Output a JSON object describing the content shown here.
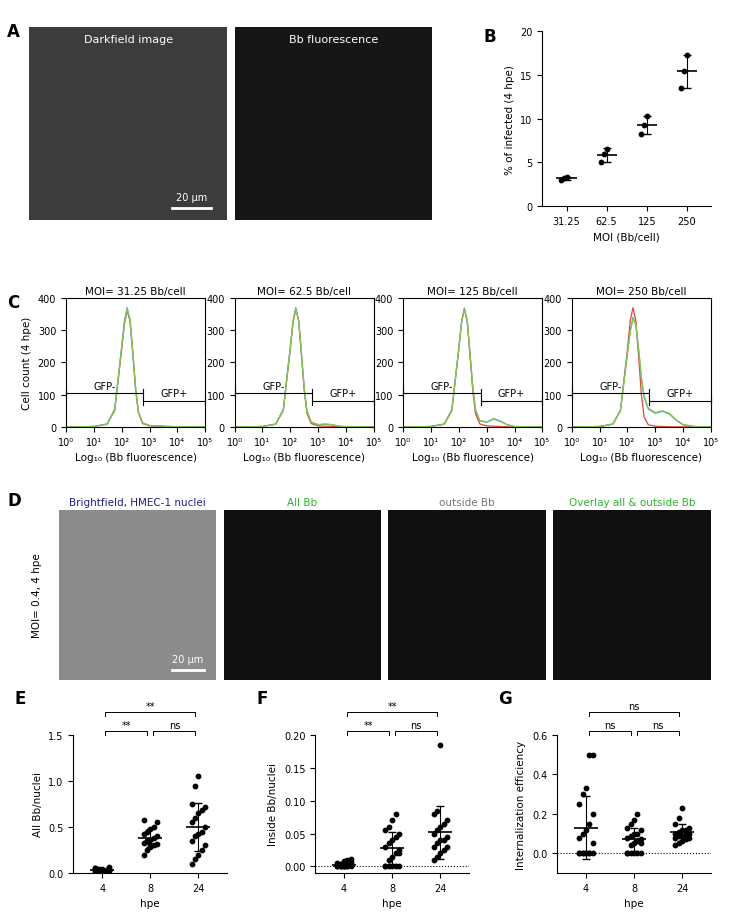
{
  "images": [
    {
      "panel_label": "A",
      "frames": [
        {
          "title": "Darkfield image",
          "color": "#ffffff",
          "scale_bar": "20 µm"
        },
        {
          "title": "Bb fluorescence",
          "color": "#ffffff"
        }
      ]
    },
    {
      "panel_label": "D",
      "row_label": "MOI= 0.4, 4 hpe",
      "frames": [
        {
          "title": "Brightfield, HMEC-1 nuclei",
          "color": "#1f1f8f",
          "scale_bar": "20 µm"
        },
        {
          "title": "All Bb",
          "color": "#2bb52b"
        },
        {
          "title": "outside Bb",
          "color": "#777777"
        },
        {
          "title": "Overlay all & outside Bb",
          "color": "#2bb52b"
        }
      ]
    }
  ],
  "chart_data": [
    {
      "panel_label": "B",
      "type": "scatter",
      "categories": [
        "31.25",
        "62.5",
        "125",
        "250"
      ],
      "values": [
        [
          3.0,
          3.2,
          3.3
        ],
        [
          5.0,
          6.0,
          6.5
        ],
        [
          8.2,
          9.3,
          10.3
        ],
        [
          13.5,
          15.5,
          17.3
        ]
      ],
      "mean": [
        3.17,
        5.83,
        9.27,
        15.43
      ],
      "sd": [
        0.15,
        0.76,
        1.05,
        1.9
      ],
      "x_label": "MOI (Bb/cell)",
      "y_label": "% of infected (4 hpe)",
      "ylim": [
        0,
        20
      ],
      "yticks": [
        0,
        5,
        10,
        15,
        20
      ],
      "color": "#000000"
    },
    {
      "panel_label": "C",
      "type": "line",
      "title": "MOI= 31.25 Bb/cell",
      "log": "x",
      "x_label": "Log₁₀ (Bb fluorescence)",
      "y_label": "Cell count (4 hpe)",
      "x": [
        1,
        3,
        10,
        30,
        56,
        100,
        126,
        158,
        200,
        251,
        316,
        398,
        562,
        1000,
        1778,
        3162,
        5623,
        10000,
        31623,
        100000
      ],
      "series": [
        {
          "color": "#e8453c",
          "values": [
            0,
            0,
            1,
            8,
            50,
            240,
            320,
            360,
            330,
            230,
            120,
            45,
            10,
            3,
            2,
            1,
            0,
            0,
            0,
            0
          ]
        },
        {
          "color": "#3fa7d6",
          "values": [
            0,
            0,
            1,
            9,
            55,
            250,
            330,
            370,
            325,
            225,
            115,
            45,
            12,
            4,
            3,
            2,
            1,
            0,
            0,
            0
          ]
        },
        {
          "color": "#8cc63f",
          "values": [
            0,
            0,
            1,
            8,
            52,
            245,
            325,
            365,
            335,
            235,
            120,
            48,
            12,
            4,
            3,
            2,
            1,
            0,
            0,
            0
          ]
        }
      ],
      "gates": [
        {
          "label": "GFP-",
          "start": 1,
          "end": 600
        },
        {
          "label": "GFP+",
          "start": 600,
          "end": 100000
        }
      ],
      "xlim": [
        1,
        100000
      ],
      "xticks": [
        {
          "value": 1,
          "label": "10⁰"
        },
        {
          "value": 10,
          "label": "10¹"
        },
        {
          "value": 100,
          "label": "10²"
        },
        {
          "value": 1000,
          "label": "10³"
        },
        {
          "value": 10000,
          "label": "10⁴"
        },
        {
          "value": 100000,
          "label": "10⁵"
        }
      ],
      "ylim": [
        0,
        400
      ],
      "yticks": [
        0,
        100,
        200,
        300,
        400
      ]
    },
    {
      "type": "line",
      "title": "MOI= 62.5 Bb/cell",
      "log": "x",
      "x_label": "Log₁₀ (Bb fluorescence)",
      "x": [
        1,
        3,
        10,
        30,
        56,
        100,
        126,
        158,
        200,
        251,
        316,
        398,
        562,
        1000,
        1778,
        3162,
        5623,
        10000,
        31623,
        100000
      ],
      "series": [
        {
          "color": "#e8453c",
          "values": [
            0,
            0,
            1,
            8,
            50,
            240,
            325,
            365,
            330,
            225,
            115,
            42,
            10,
            3,
            2,
            1,
            0,
            0,
            0,
            0
          ]
        },
        {
          "color": "#3fa7d6",
          "values": [
            0,
            0,
            1,
            9,
            54,
            248,
            330,
            370,
            328,
            228,
            120,
            48,
            14,
            6,
            8,
            6,
            2,
            0,
            0,
            0
          ]
        },
        {
          "color": "#8cc63f",
          "values": [
            0,
            0,
            1,
            8,
            52,
            244,
            326,
            366,
            332,
            232,
            122,
            50,
            15,
            7,
            9,
            7,
            2,
            1,
            0,
            0
          ]
        }
      ],
      "gates": [
        {
          "label": "GFP-",
          "start": 1,
          "end": 600
        },
        {
          "label": "GFP+",
          "start": 600,
          "end": 100000
        }
      ],
      "xlim": [
        1,
        100000
      ],
      "xticks": [
        {
          "value": 1,
          "label": "10⁰"
        },
        {
          "value": 10,
          "label": "10¹"
        },
        {
          "value": 100,
          "label": "10²"
        },
        {
          "value": 1000,
          "label": "10³"
        },
        {
          "value": 10000,
          "label": "10⁴"
        },
        {
          "value": 100000,
          "label": "10⁵"
        }
      ],
      "ylim": [
        0,
        400
      ],
      "yticks": [
        0,
        100,
        200,
        300,
        400
      ]
    },
    {
      "type": "line",
      "title": "MOI= 125 Bb/cell",
      "log": "x",
      "x_label": "Log₁₀ (Bb fluorescence)",
      "x": [
        1,
        3,
        10,
        30,
        56,
        100,
        126,
        158,
        200,
        251,
        316,
        398,
        562,
        1000,
        1778,
        3162,
        5623,
        10000,
        31623,
        100000
      ],
      "series": [
        {
          "color": "#e8453c",
          "values": [
            0,
            0,
            1,
            8,
            50,
            242,
            328,
            368,
            330,
            222,
            112,
            40,
            9,
            3,
            2,
            1,
            0,
            0,
            0,
            0
          ]
        },
        {
          "color": "#3fa7d6",
          "values": [
            0,
            0,
            1,
            9,
            54,
            246,
            328,
            366,
            326,
            226,
            122,
            52,
            18,
            14,
            24,
            16,
            6,
            1,
            0,
            0
          ]
        },
        {
          "color": "#8cc63f",
          "values": [
            0,
            0,
            1,
            8,
            52,
            244,
            326,
            364,
            330,
            230,
            124,
            54,
            20,
            15,
            26,
            18,
            6,
            1,
            0,
            0
          ]
        }
      ],
      "gates": [
        {
          "label": "GFP-",
          "start": 1,
          "end": 600
        },
        {
          "label": "GFP+",
          "start": 600,
          "end": 100000
        }
      ],
      "xlim": [
        1,
        100000
      ],
      "xticks": [
        {
          "value": 1,
          "label": "10⁰"
        },
        {
          "value": 10,
          "label": "10¹"
        },
        {
          "value": 100,
          "label": "10²"
        },
        {
          "value": 1000,
          "label": "10³"
        },
        {
          "value": 10000,
          "label": "10⁴"
        },
        {
          "value": 100000,
          "label": "10⁵"
        }
      ],
      "ylim": [
        0,
        400
      ],
      "yticks": [
        0,
        100,
        200,
        300,
        400
      ]
    },
    {
      "type": "line",
      "title": "MOI= 250 Bb/cell",
      "log": "x",
      "x_label": "Log₁₀ (Bb fluorescence)",
      "x": [
        1,
        3,
        10,
        30,
        56,
        100,
        126,
        158,
        200,
        251,
        316,
        398,
        562,
        1000,
        1778,
        3162,
        5623,
        10000,
        31623,
        100000
      ],
      "series": [
        {
          "color": "#e8453c",
          "values": [
            0,
            0,
            1,
            8,
            50,
            240,
            330,
            370,
            330,
            220,
            100,
            30,
            6,
            2,
            1,
            0,
            0,
            0,
            0,
            0
          ]
        },
        {
          "color": "#3fa7d6",
          "values": [
            0,
            0,
            1,
            9,
            52,
            230,
            300,
            340,
            315,
            240,
            150,
            90,
            55,
            42,
            48,
            40,
            20,
            6,
            0,
            0
          ]
        },
        {
          "color": "#8cc63f",
          "values": [
            0,
            0,
            1,
            8,
            50,
            225,
            295,
            335,
            318,
            245,
            155,
            95,
            58,
            44,
            50,
            42,
            22,
            7,
            0,
            0
          ]
        }
      ],
      "gates": [
        {
          "label": "GFP-",
          "start": 1,
          "end": 600
        },
        {
          "label": "GFP+",
          "start": 600,
          "end": 100000
        }
      ],
      "xlim": [
        1,
        100000
      ],
      "xticks": [
        {
          "value": 1,
          "label": "10⁰"
        },
        {
          "value": 10,
          "label": "10¹"
        },
        {
          "value": 100,
          "label": "10²"
        },
        {
          "value": 1000,
          "label": "10³"
        },
        {
          "value": 10000,
          "label": "10⁴"
        },
        {
          "value": 100000,
          "label": "10⁵"
        }
      ],
      "ylim": [
        0,
        400
      ],
      "yticks": [
        0,
        100,
        200,
        300,
        400
      ]
    },
    {
      "panel_label": "E",
      "type": "scatter",
      "categories": [
        "4",
        "8",
        "24"
      ],
      "values": [
        [
          0.01,
          0.02,
          0.03,
          0.02,
          0.04,
          0.05,
          0.03,
          0.01,
          0.02,
          0.06,
          0.03,
          0.04,
          0.02,
          0.01,
          0.03,
          0.05,
          0.02,
          0.04,
          0.03,
          0.02
        ],
        [
          0.2,
          0.25,
          0.28,
          0.3,
          0.32,
          0.33,
          0.35,
          0.36,
          0.38,
          0.4,
          0.42,
          0.45,
          0.48,
          0.5,
          0.55,
          0.58,
          0.35,
          0.3
        ],
        [
          0.1,
          0.15,
          0.2,
          0.25,
          0.3,
          0.35,
          0.4,
          0.42,
          0.45,
          0.5,
          0.55,
          0.6,
          0.65,
          0.68,
          0.72,
          0.75,
          0.95,
          1.05
        ]
      ],
      "mean": [
        0.029,
        0.378,
        0.504
      ],
      "sd": [
        0.014,
        0.1,
        0.26
      ],
      "comparisons": [
        {
          "pair": [
            "4",
            "8"
          ],
          "label": "**"
        },
        {
          "pair": [
            "4",
            "24"
          ],
          "label": "**"
        },
        {
          "pair": [
            "8",
            "24"
          ],
          "label": "ns"
        }
      ],
      "x_label": "hpe",
      "y_label": "All Bb/nuclei",
      "ylim": [
        0,
        1.5
      ],
      "yticks": [
        {
          "value": 0,
          "label": "0.0"
        },
        {
          "value": 0.5,
          "label": "0.5"
        },
        {
          "value": 1,
          "label": "1.0"
        },
        {
          "value": 1.5,
          "label": "1.5"
        }
      ],
      "color": "#000000"
    },
    {
      "panel_label": "F",
      "type": "scatter",
      "categories": [
        "4",
        "8",
        "24"
      ],
      "values": [
        [
          0,
          0,
          0,
          0,
          0,
          0,
          0,
          0,
          0,
          0.003,
          0.005,
          0.004,
          0.008,
          0.01,
          0.006,
          0.002,
          0,
          0,
          0.003,
          0.012
        ],
        [
          0,
          0,
          0,
          0,
          0,
          0,
          0.01,
          0.015,
          0.02,
          0.025,
          0.03,
          0.035,
          0.04,
          0.045,
          0.05,
          0.055,
          0.06,
          0.07,
          0.08,
          0.02
        ],
        [
          0.01,
          0.015,
          0.02,
          0.025,
          0.03,
          0.03,
          0.035,
          0.04,
          0.04,
          0.045,
          0.05,
          0.055,
          0.06,
          0.065,
          0.07,
          0.08,
          0.085,
          0.185
        ]
      ],
      "mean": [
        0.0027,
        0.028,
        0.052
      ],
      "sd": [
        0.004,
        0.025,
        0.04
      ],
      "comparisons": [
        {
          "pair": [
            "4",
            "8"
          ],
          "label": "**"
        },
        {
          "pair": [
            "4",
            "24"
          ],
          "label": "**"
        },
        {
          "pair": [
            "8",
            "24"
          ],
          "label": "ns"
        }
      ],
      "x_label": "hpe",
      "y_label": "Inside Bb/nuclei",
      "ylim": [
        -0.01,
        0.2
      ],
      "yticks": [
        {
          "value": 0,
          "label": "0.00"
        },
        {
          "value": 0.05,
          "label": "0.05"
        },
        {
          "value": 0.1,
          "label": "0.10"
        },
        {
          "value": 0.15,
          "label": "0.15"
        },
        {
          "value": 0.2,
          "label": "0.20"
        }
      ],
      "color": "#000000"
    },
    {
      "panel_label": "G",
      "type": "scatter",
      "categories": [
        "4",
        "8",
        "24"
      ],
      "values": [
        [
          0,
          0,
          0,
          0,
          0,
          0,
          0,
          0,
          0,
          0.05,
          0.08,
          0.1,
          0.12,
          0.15,
          0.2,
          0.25,
          0.3,
          0.33,
          0.5,
          0.5
        ],
        [
          0,
          0,
          0,
          0,
          0,
          0,
          0.04,
          0.05,
          0.06,
          0.07,
          0.08,
          0.09,
          0.1,
          0.1,
          0.12,
          0.13,
          0.15,
          0.17,
          0.2,
          0.05
        ],
        [
          0.04,
          0.05,
          0.06,
          0.07,
          0.08,
          0.08,
          0.09,
          0.09,
          0.1,
          0.1,
          0.1,
          0.11,
          0.12,
          0.12,
          0.13,
          0.15,
          0.18,
          0.23
        ]
      ],
      "mean": [
        0.129,
        0.07,
        0.106
      ],
      "sd": [
        0.16,
        0.06,
        0.045
      ],
      "comparisons": [
        {
          "pair": [
            "4",
            "8"
          ],
          "label": "ns"
        },
        {
          "pair": [
            "4",
            "24"
          ],
          "label": "ns"
        },
        {
          "pair": [
            "8",
            "24"
          ],
          "label": "ns"
        }
      ],
      "x_label": "hpe",
      "y_label": "Internalization efficiency",
      "ylim": [
        -0.1,
        0.6
      ],
      "yticks": [
        {
          "value": 0,
          "label": "0.0"
        },
        {
          "value": 0.2,
          "label": "0.2"
        },
        {
          "value": 0.4,
          "label": "0.4"
        },
        {
          "value": 0.6,
          "label": "0.6"
        }
      ],
      "color": "#000000"
    }
  ]
}
